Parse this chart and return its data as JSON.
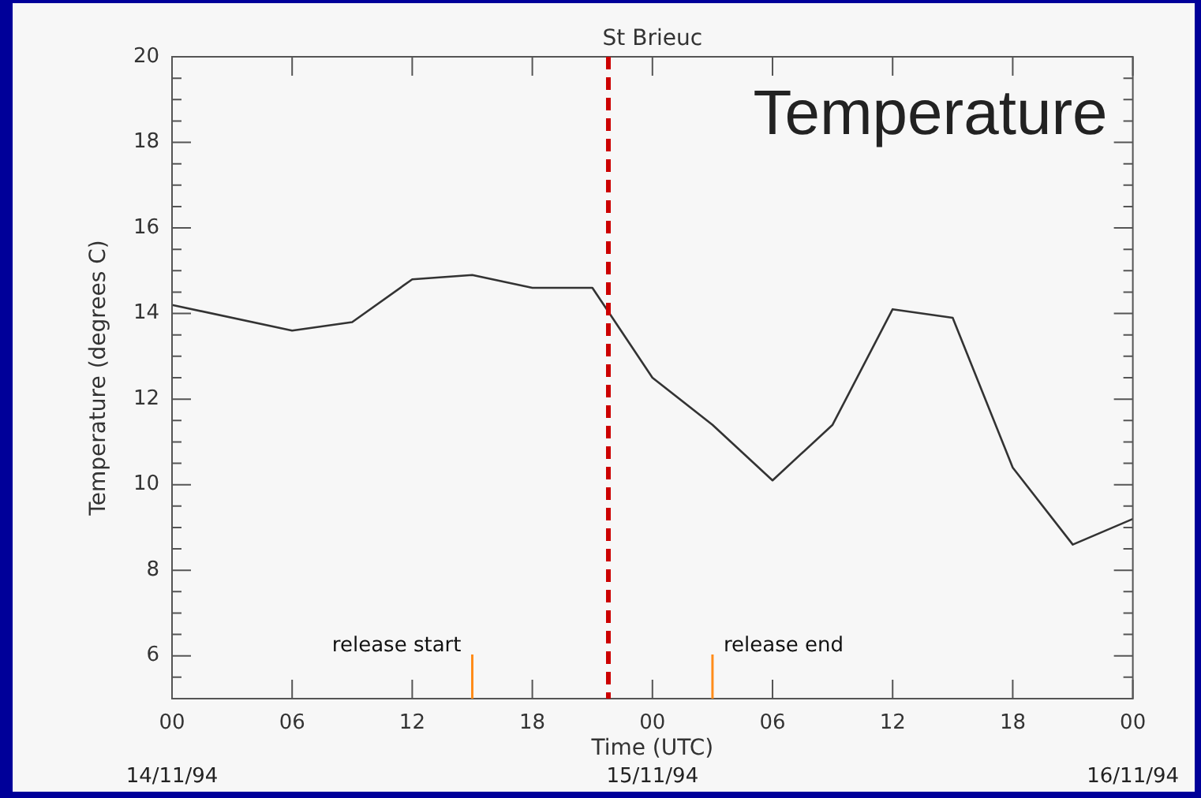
{
  "chart_data": {
    "type": "line",
    "title": "St Brieuc",
    "xlabel": "Time (UTC)",
    "ylabel": "Temperature (degrees C)",
    "x": [
      "--11-14T00:00",
      "--11-14T06:00",
      "--11-14T09:00",
      "--11-14T12:00",
      "--11-14T15:00",
      "--11-14T18:00",
      "--11-14T21:00",
      "--11-15T00:00",
      "--11-15T03:00",
      "--11-15T06:00",
      "--11-15T09:00",
      "--11-15T12:00",
      "--11-15T15:00",
      "--11-15T18:00",
      "--11-15T21:00",
      "--11-16T00:00"
    ],
    "series": [
      {
        "color": "#333333",
        "values": [
          14.2,
          13.6,
          13.8,
          14.8,
          14.9,
          14.6,
          14.6,
          12.5,
          11.4,
          10.1,
          11.4,
          14.1,
          13.9,
          10.4,
          8.6,
          9.2
        ]
      }
    ],
    "xlim": [
      "--11-14T00:00",
      "--11-16T00:00"
    ],
    "xticks": [
      {
        "value": "--11-14T00:00",
        "label": "00"
      },
      {
        "value": "--11-14T06:00",
        "label": "06"
      },
      {
        "value": "--11-14T12:00",
        "label": "12"
      },
      {
        "value": "--11-14T18:00",
        "label": "18"
      },
      {
        "value": "--11-15T00:00",
        "label": "00"
      },
      {
        "value": "--11-15T06:00",
        "label": "06"
      },
      {
        "value": "--11-15T12:00",
        "label": "12"
      },
      {
        "value": "--11-15T18:00",
        "label": "18"
      },
      {
        "value": "--11-16T00:00",
        "label": "00"
      }
    ],
    "x2lim": [
      "--11-14T00:00",
      "--11-16T00:00"
    ],
    "x2ticks": [
      {
        "value": "--11-14T00:00",
        "label": "14/11/94"
      },
      {
        "value": "--11-15T00:00",
        "label": "15/11/94"
      },
      {
        "value": "--11-16T00:00",
        "label": "16/11/94"
      }
    ],
    "ylim": [
      5,
      20
    ],
    "yticks": [
      {
        "value": 5,
        "label": null
      },
      {
        "value": 5.5,
        "label": null
      },
      6,
      {
        "value": 6.5,
        "label": null
      },
      {
        "value": 7,
        "label": null
      },
      {
        "value": 7.5,
        "label": null
      },
      8,
      {
        "value": 8.5,
        "label": null
      },
      {
        "value": 9,
        "label": null
      },
      {
        "value": 9.5,
        "label": null
      },
      10,
      {
        "value": 10.5,
        "label": null
      },
      {
        "value": 11,
        "label": null
      },
      {
        "value": 11.5,
        "label": null
      },
      12,
      {
        "value": 12.5,
        "label": null
      },
      {
        "value": 13,
        "label": null
      },
      {
        "value": 13.5,
        "label": null
      },
      14,
      {
        "value": 14.5,
        "label": null
      },
      {
        "value": 15,
        "label": null
      },
      {
        "value": 15.5,
        "label": null
      },
      16,
      {
        "value": 16.5,
        "label": null
      },
      {
        "value": 17,
        "label": null
      },
      {
        "value": 17.5,
        "label": null
      },
      18,
      {
        "value": 18.5,
        "label": null
      },
      {
        "value": 19,
        "label": null
      },
      {
        "value": 19.5,
        "label": null
      },
      20
    ],
    "ref_lines": [
      {
        "axis": "x",
        "value": "--11-14T21:48",
        "color": "#cc0000",
        "line_style": "dashed"
      },
      {
        "axis": "x",
        "value": "--11-14T15:00",
        "label": "release start",
        "color": "#ff8c1a"
      },
      {
        "axis": "x",
        "value": "--11-15T03:00",
        "label": "release end",
        "color": "#ff8c1a"
      }
    ],
    "annotations": [
      "Temperature"
    ],
    "grid": false,
    "legend": false,
    "marker": "none",
    "line_style": "solid"
  }
}
